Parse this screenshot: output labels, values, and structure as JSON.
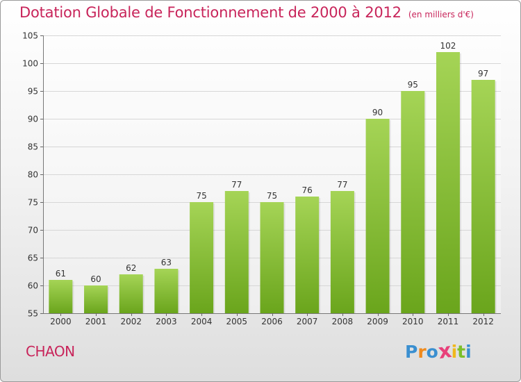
{
  "header": {
    "title": "Dotation Globale de Fonctionnement de 2000 à 2012",
    "subtitle": "(en milliers d'€)"
  },
  "footer": {
    "commune": "CHAON",
    "logo_letters": [
      {
        "ch": "P",
        "color": "#3a8fd0"
      },
      {
        "ch": "r",
        "color": "#f08a1c"
      },
      {
        "ch": "o",
        "color": "#3a8fd0"
      },
      {
        "ch": "x",
        "color": "#e8407a"
      },
      {
        "ch": "i",
        "color": "#f0b81c"
      },
      {
        "ch": "t",
        "color": "#7cbf2a"
      },
      {
        "ch": "i",
        "color": "#3a8fd0"
      }
    ]
  },
  "chart_data": {
    "type": "bar",
    "categories": [
      "2000",
      "2001",
      "2002",
      "2003",
      "2004",
      "2005",
      "2006",
      "2007",
      "2008",
      "2009",
      "2010",
      "2011",
      "2012"
    ],
    "values": [
      61,
      60,
      62,
      63,
      75,
      77,
      75,
      76,
      77,
      90,
      95,
      102,
      97
    ],
    "data_labels": [
      "61",
      "60",
      "62",
      "63",
      "75",
      "77",
      "75",
      "76",
      "77",
      "90",
      "95",
      "102",
      "97"
    ],
    "ylim": [
      55,
      105
    ],
    "yticks": [
      55,
      60,
      65,
      70,
      75,
      80,
      85,
      90,
      95,
      100,
      105
    ],
    "grid": true,
    "bar_color_top": "#a5d456",
    "bar_color_bottom": "#6aa51c",
    "title_color": "#c8245a"
  }
}
